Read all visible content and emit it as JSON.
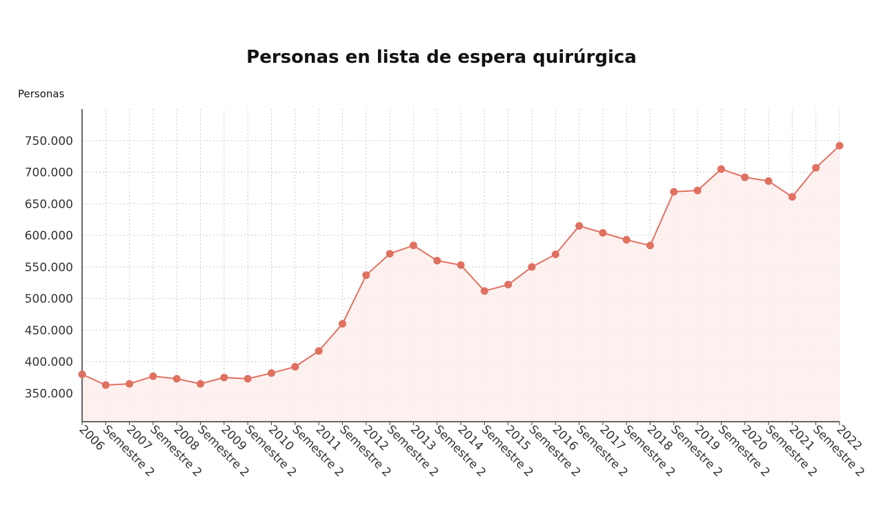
{
  "chart_data": {
    "type": "line",
    "title": "Personas en lista de espera quirúrgica",
    "ylabel": "Personas",
    "xlabel": "",
    "categories": [
      "2006",
      "Semestre 2",
      "2007",
      "Semestre 2",
      "2008",
      "Semestre 2",
      "2009",
      "Semestre 2",
      "2010",
      "Semestre 2",
      "2011",
      "Semestre 2",
      "2012",
      "Semestre 2",
      "2013",
      "Semestre 2",
      "2014",
      "Semestre 2",
      "2015",
      "Semestre 2",
      "2016",
      "Semestre 2",
      "2017",
      "Semestre 2",
      "2018",
      "Semestre 2",
      "2019",
      "Semestre 2",
      "2020",
      "Semestre 2",
      "2021",
      "Semestre 2",
      "2022"
    ],
    "values": [
      380000,
      363000,
      365000,
      377000,
      373000,
      365000,
      375000,
      373000,
      382000,
      392000,
      417000,
      460000,
      537000,
      571000,
      584000,
      560000,
      553000,
      512000,
      522000,
      550000,
      570000,
      615000,
      604000,
      593000,
      584000,
      669000,
      671000,
      705000,
      692000,
      686000,
      661000,
      707000,
      742000
    ],
    "y_ticks": [
      "350.000",
      "400.000",
      "450.000",
      "500.000",
      "550.000",
      "600.000",
      "650.000",
      "700.000",
      "750.000"
    ],
    "y_tick_values": [
      350000,
      400000,
      450000,
      500000,
      550000,
      600000,
      650000,
      700000,
      750000
    ],
    "ylim": [
      305000,
      800000
    ],
    "grid": true,
    "line_color": "#e07060",
    "fill_color": "#fdeeed"
  }
}
